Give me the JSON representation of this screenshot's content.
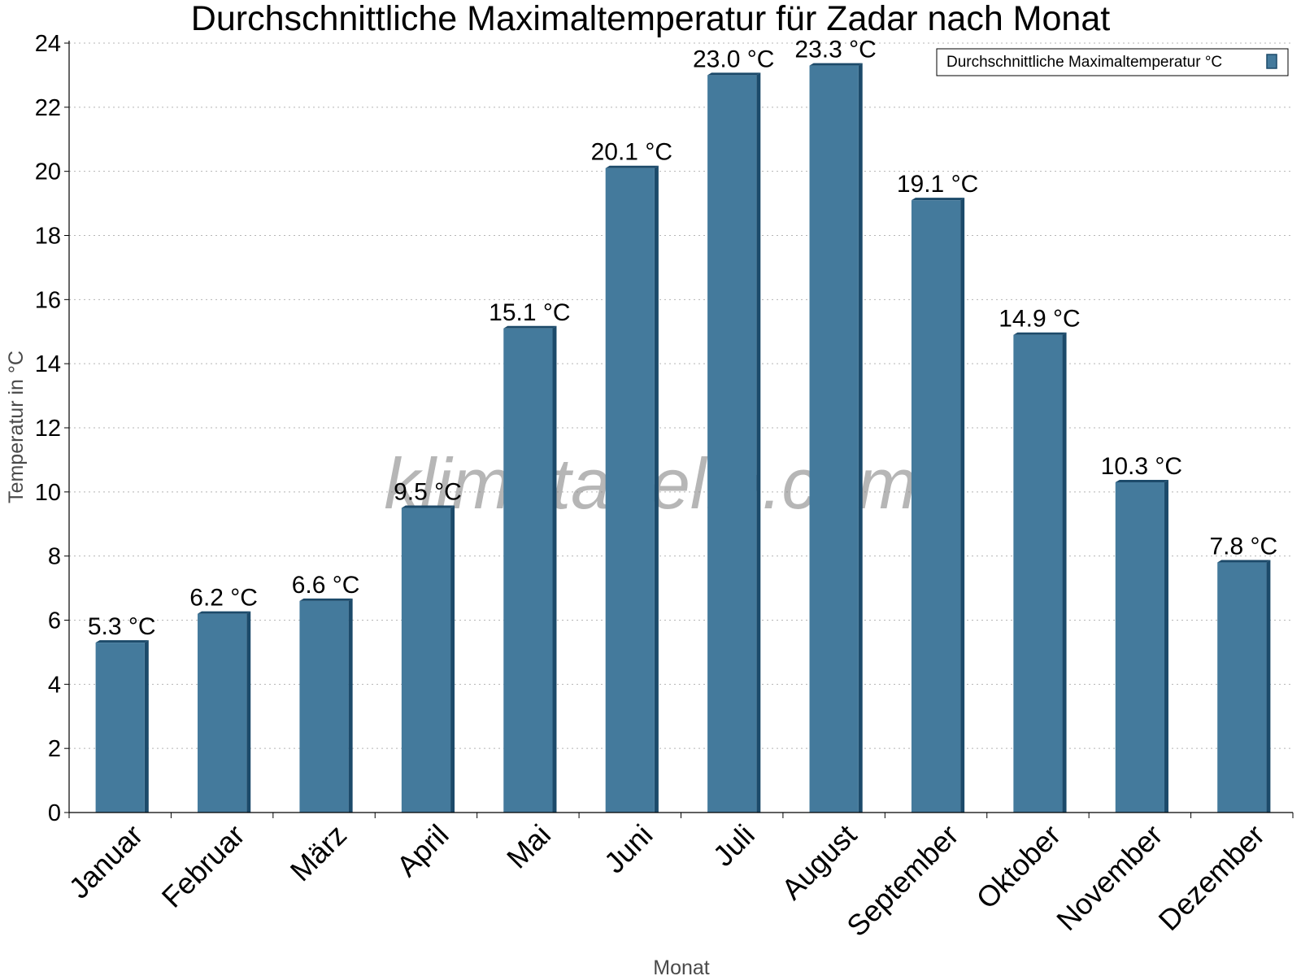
{
  "chart_data": {
    "type": "bar",
    "title": "Durchschnittliche Maximaltemperatur für Zadar nach Monat",
    "xlabel": "Monat",
    "ylabel": "Temperatur in °C",
    "categories": [
      "Januar",
      "Februar",
      "März",
      "April",
      "Mai",
      "Juni",
      "Juli",
      "August",
      "September",
      "Oktober",
      "November",
      "Dezember"
    ],
    "series": [
      {
        "name": "Durchschnittliche Maximaltemperatur °C",
        "values": [
          5.3,
          6.2,
          6.6,
          9.5,
          15.1,
          20.1,
          23.0,
          23.3,
          19.1,
          14.9,
          10.3,
          7.8
        ],
        "labels": [
          "5.3 °C",
          "6.2 °C",
          "6.6 °C",
          "9.5 °C",
          "15.1 °C",
          "20.1 °C",
          "23.0 °C",
          "23.3 °C",
          "19.1 °C",
          "14.9 °C",
          "10.3 °C",
          "7.8 °C"
        ],
        "color": "#447a9c",
        "edge_color": "#1c4a6a"
      }
    ],
    "ylim": [
      0,
      24
    ],
    "yticks": [
      "0",
      "2",
      "4",
      "6",
      "8",
      "10",
      "12",
      "14",
      "16",
      "18",
      "20",
      "22",
      "24"
    ],
    "grid": true,
    "legend_position": "top-right",
    "watermark": "klimatabelle.com"
  }
}
